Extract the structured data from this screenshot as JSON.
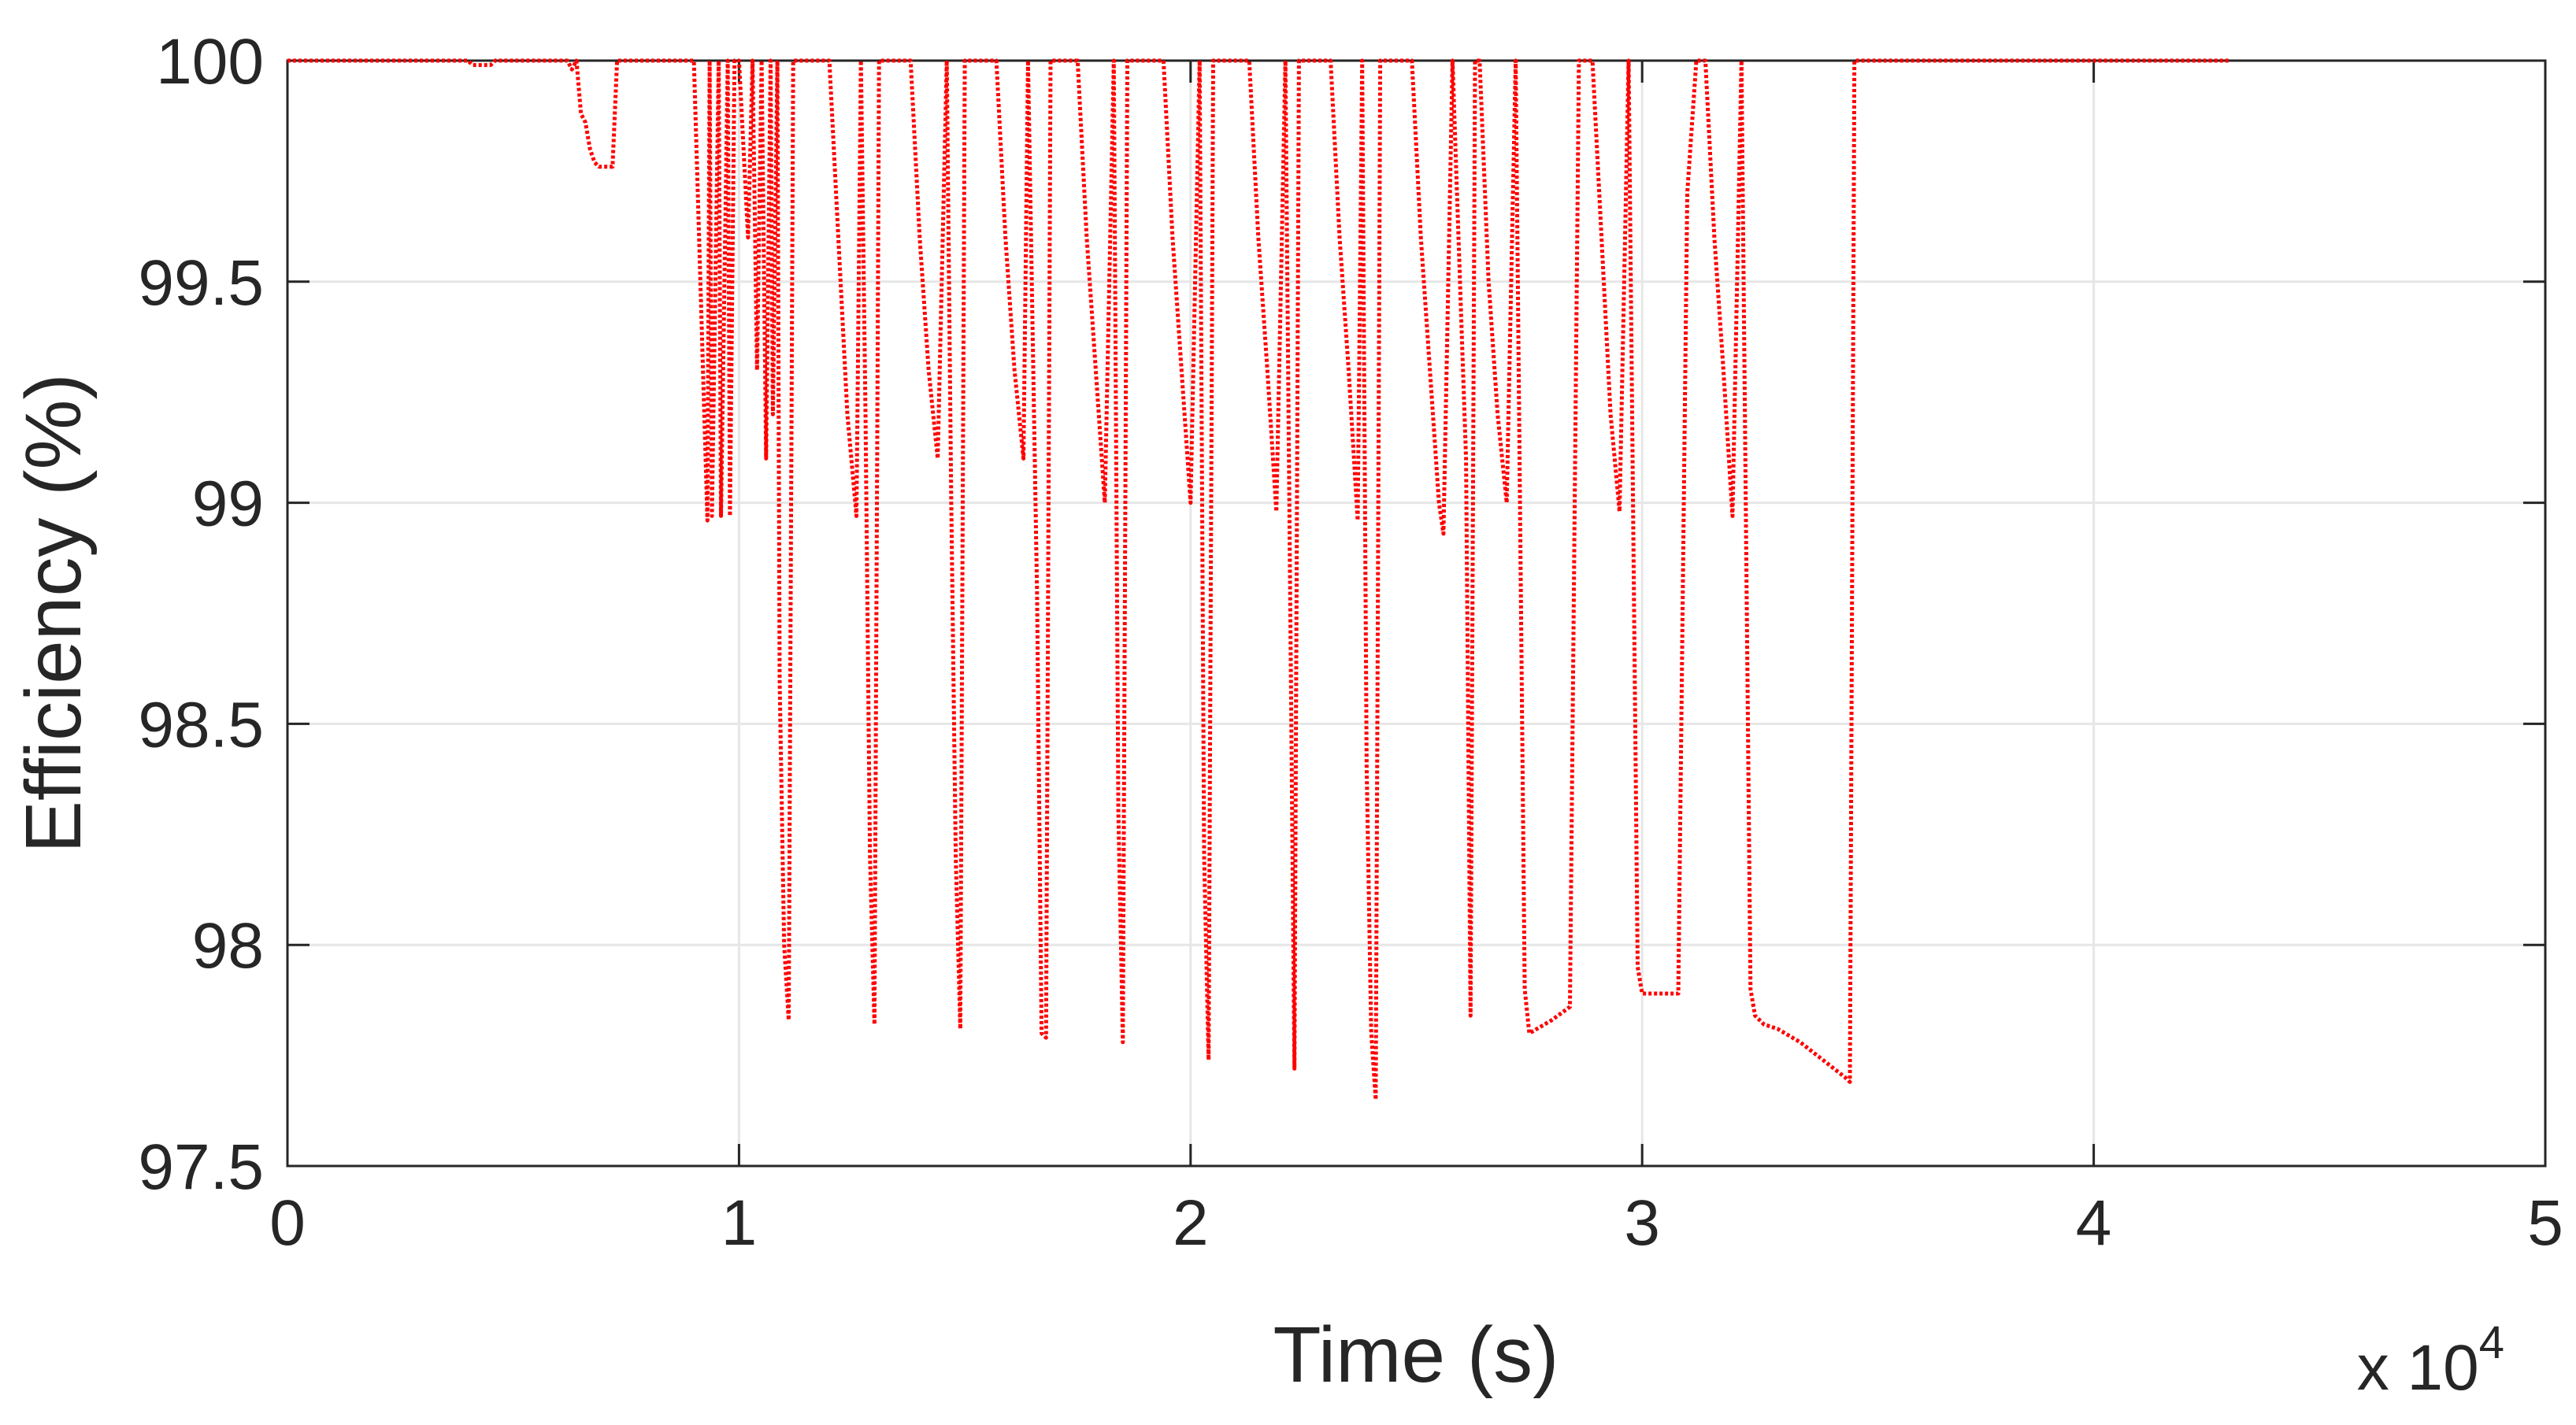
{
  "chart_data": {
    "type": "line",
    "xlabel": "Time (s)",
    "ylabel": "Efficiency (%)",
    "x_exponent_label": "x 10",
    "x_exponent_power": "4",
    "xlim": [
      0,
      5
    ],
    "ylim": [
      97.5,
      100
    ],
    "x_scale_factor": 10000,
    "xticks": [
      0,
      1,
      2,
      3,
      4,
      5
    ],
    "yticks": [
      97.5,
      98,
      98.5,
      99,
      99.5,
      100
    ],
    "xtick_labels": [
      "0",
      "1",
      "2",
      "3",
      "4",
      "5"
    ],
    "ytick_labels": [
      "97.5",
      "98",
      "98.5",
      "99",
      "99.5",
      "100"
    ],
    "grid": true,
    "line_color": "#ff0000",
    "line_style": "dotted",
    "series": [
      {
        "x_units": "x 10^4 s",
        "x": [
          0.0,
          0.4,
          0.41,
          0.43,
          0.45,
          0.46,
          0.58,
          0.62,
          0.63,
          0.64,
          0.65,
          0.66,
          0.67,
          0.68,
          0.69,
          0.7,
          0.72,
          0.73,
          0.74,
          0.75,
          0.9,
          0.93,
          0.935,
          0.94,
          0.955,
          0.96,
          0.975,
          0.98,
          0.99,
          1.0,
          1.02,
          1.03,
          1.04,
          1.05,
          1.06,
          1.07,
          1.075,
          1.085,
          1.09,
          1.1,
          1.11,
          1.12,
          1.15,
          1.2,
          1.22,
          1.24,
          1.26,
          1.27,
          1.28,
          1.29,
          1.3,
          1.31,
          1.33,
          1.38,
          1.4,
          1.42,
          1.44,
          1.46,
          1.47,
          1.48,
          1.49,
          1.5,
          1.52,
          1.57,
          1.59,
          1.61,
          1.63,
          1.64,
          1.66,
          1.67,
          1.68,
          1.69,
          1.71,
          1.75,
          1.77,
          1.79,
          1.81,
          1.83,
          1.84,
          1.85,
          1.86,
          1.88,
          1.94,
          1.96,
          1.98,
          2.0,
          2.02,
          2.03,
          2.04,
          2.05,
          2.07,
          2.13,
          2.15,
          2.17,
          2.19,
          2.21,
          2.22,
          2.23,
          2.24,
          2.26,
          2.31,
          2.33,
          2.35,
          2.37,
          2.38,
          2.39,
          2.4,
          2.41,
          2.42,
          2.44,
          2.49,
          2.51,
          2.53,
          2.55,
          2.56,
          2.58,
          2.6,
          2.61,
          2.62,
          2.63,
          2.64,
          2.66,
          2.68,
          2.7,
          2.72,
          2.74,
          2.75,
          2.8,
          2.84,
          2.86,
          2.89,
          2.91,
          2.93,
          2.95,
          2.97,
          2.99,
          3.0,
          3.02,
          3.05,
          3.08,
          3.1,
          3.12,
          3.14,
          3.16,
          3.18,
          3.2,
          3.22,
          3.24,
          3.25,
          3.27,
          3.3,
          3.35,
          3.4,
          3.45,
          3.46,
          3.47,
          3.5,
          4.0,
          4.3
        ],
        "y": [
          100.0,
          100.0,
          99.99,
          99.99,
          99.99,
          100.0,
          100.0,
          100.0,
          99.98,
          100.0,
          99.88,
          99.86,
          99.8,
          99.77,
          99.76,
          99.76,
          99.76,
          100.0,
          100.0,
          100.0,
          100.0,
          98.96,
          100.0,
          98.97,
          100.0,
          98.97,
          100.0,
          98.97,
          100.0,
          100.0,
          99.6,
          100.0,
          99.3,
          100.0,
          99.1,
          100.0,
          99.2,
          100.0,
          98.6,
          98.0,
          97.83,
          100.0,
          100.0,
          100.0,
          99.6,
          99.2,
          98.97,
          100.0,
          99.2,
          98.2,
          97.82,
          100.0,
          100.0,
          100.0,
          99.6,
          99.3,
          99.1,
          100.0,
          99.0,
          98.2,
          97.81,
          100.0,
          100.0,
          100.0,
          99.6,
          99.3,
          99.1,
          100.0,
          98.8,
          97.8,
          97.79,
          100.0,
          100.0,
          100.0,
          99.6,
          99.3,
          99.0,
          100.0,
          98.3,
          97.78,
          100.0,
          100.0,
          100.0,
          99.6,
          99.3,
          99.0,
          100.0,
          98.2,
          97.74,
          100.0,
          100.0,
          100.0,
          99.6,
          99.3,
          98.98,
          100.0,
          98.86,
          97.72,
          100.0,
          100.0,
          100.0,
          99.6,
          99.3,
          98.96,
          100.0,
          98.4,
          97.8,
          97.65,
          100.0,
          100.0,
          100.0,
          99.6,
          99.3,
          99.0,
          98.93,
          100.0,
          99.4,
          99.1,
          97.84,
          100.0,
          100.0,
          99.5,
          99.2,
          99.0,
          100.0,
          97.9,
          97.8,
          97.83,
          97.86,
          100.0,
          100.0,
          99.6,
          99.2,
          98.98,
          100.0,
          97.95,
          97.89,
          97.89,
          97.89,
          97.89,
          99.7,
          100.0,
          100.0,
          99.6,
          99.3,
          98.97,
          100.0,
          97.9,
          97.84,
          97.82,
          97.81,
          97.78,
          97.74,
          97.7,
          97.69,
          100.0,
          100.0,
          100.0,
          100.0
        ]
      }
    ]
  }
}
